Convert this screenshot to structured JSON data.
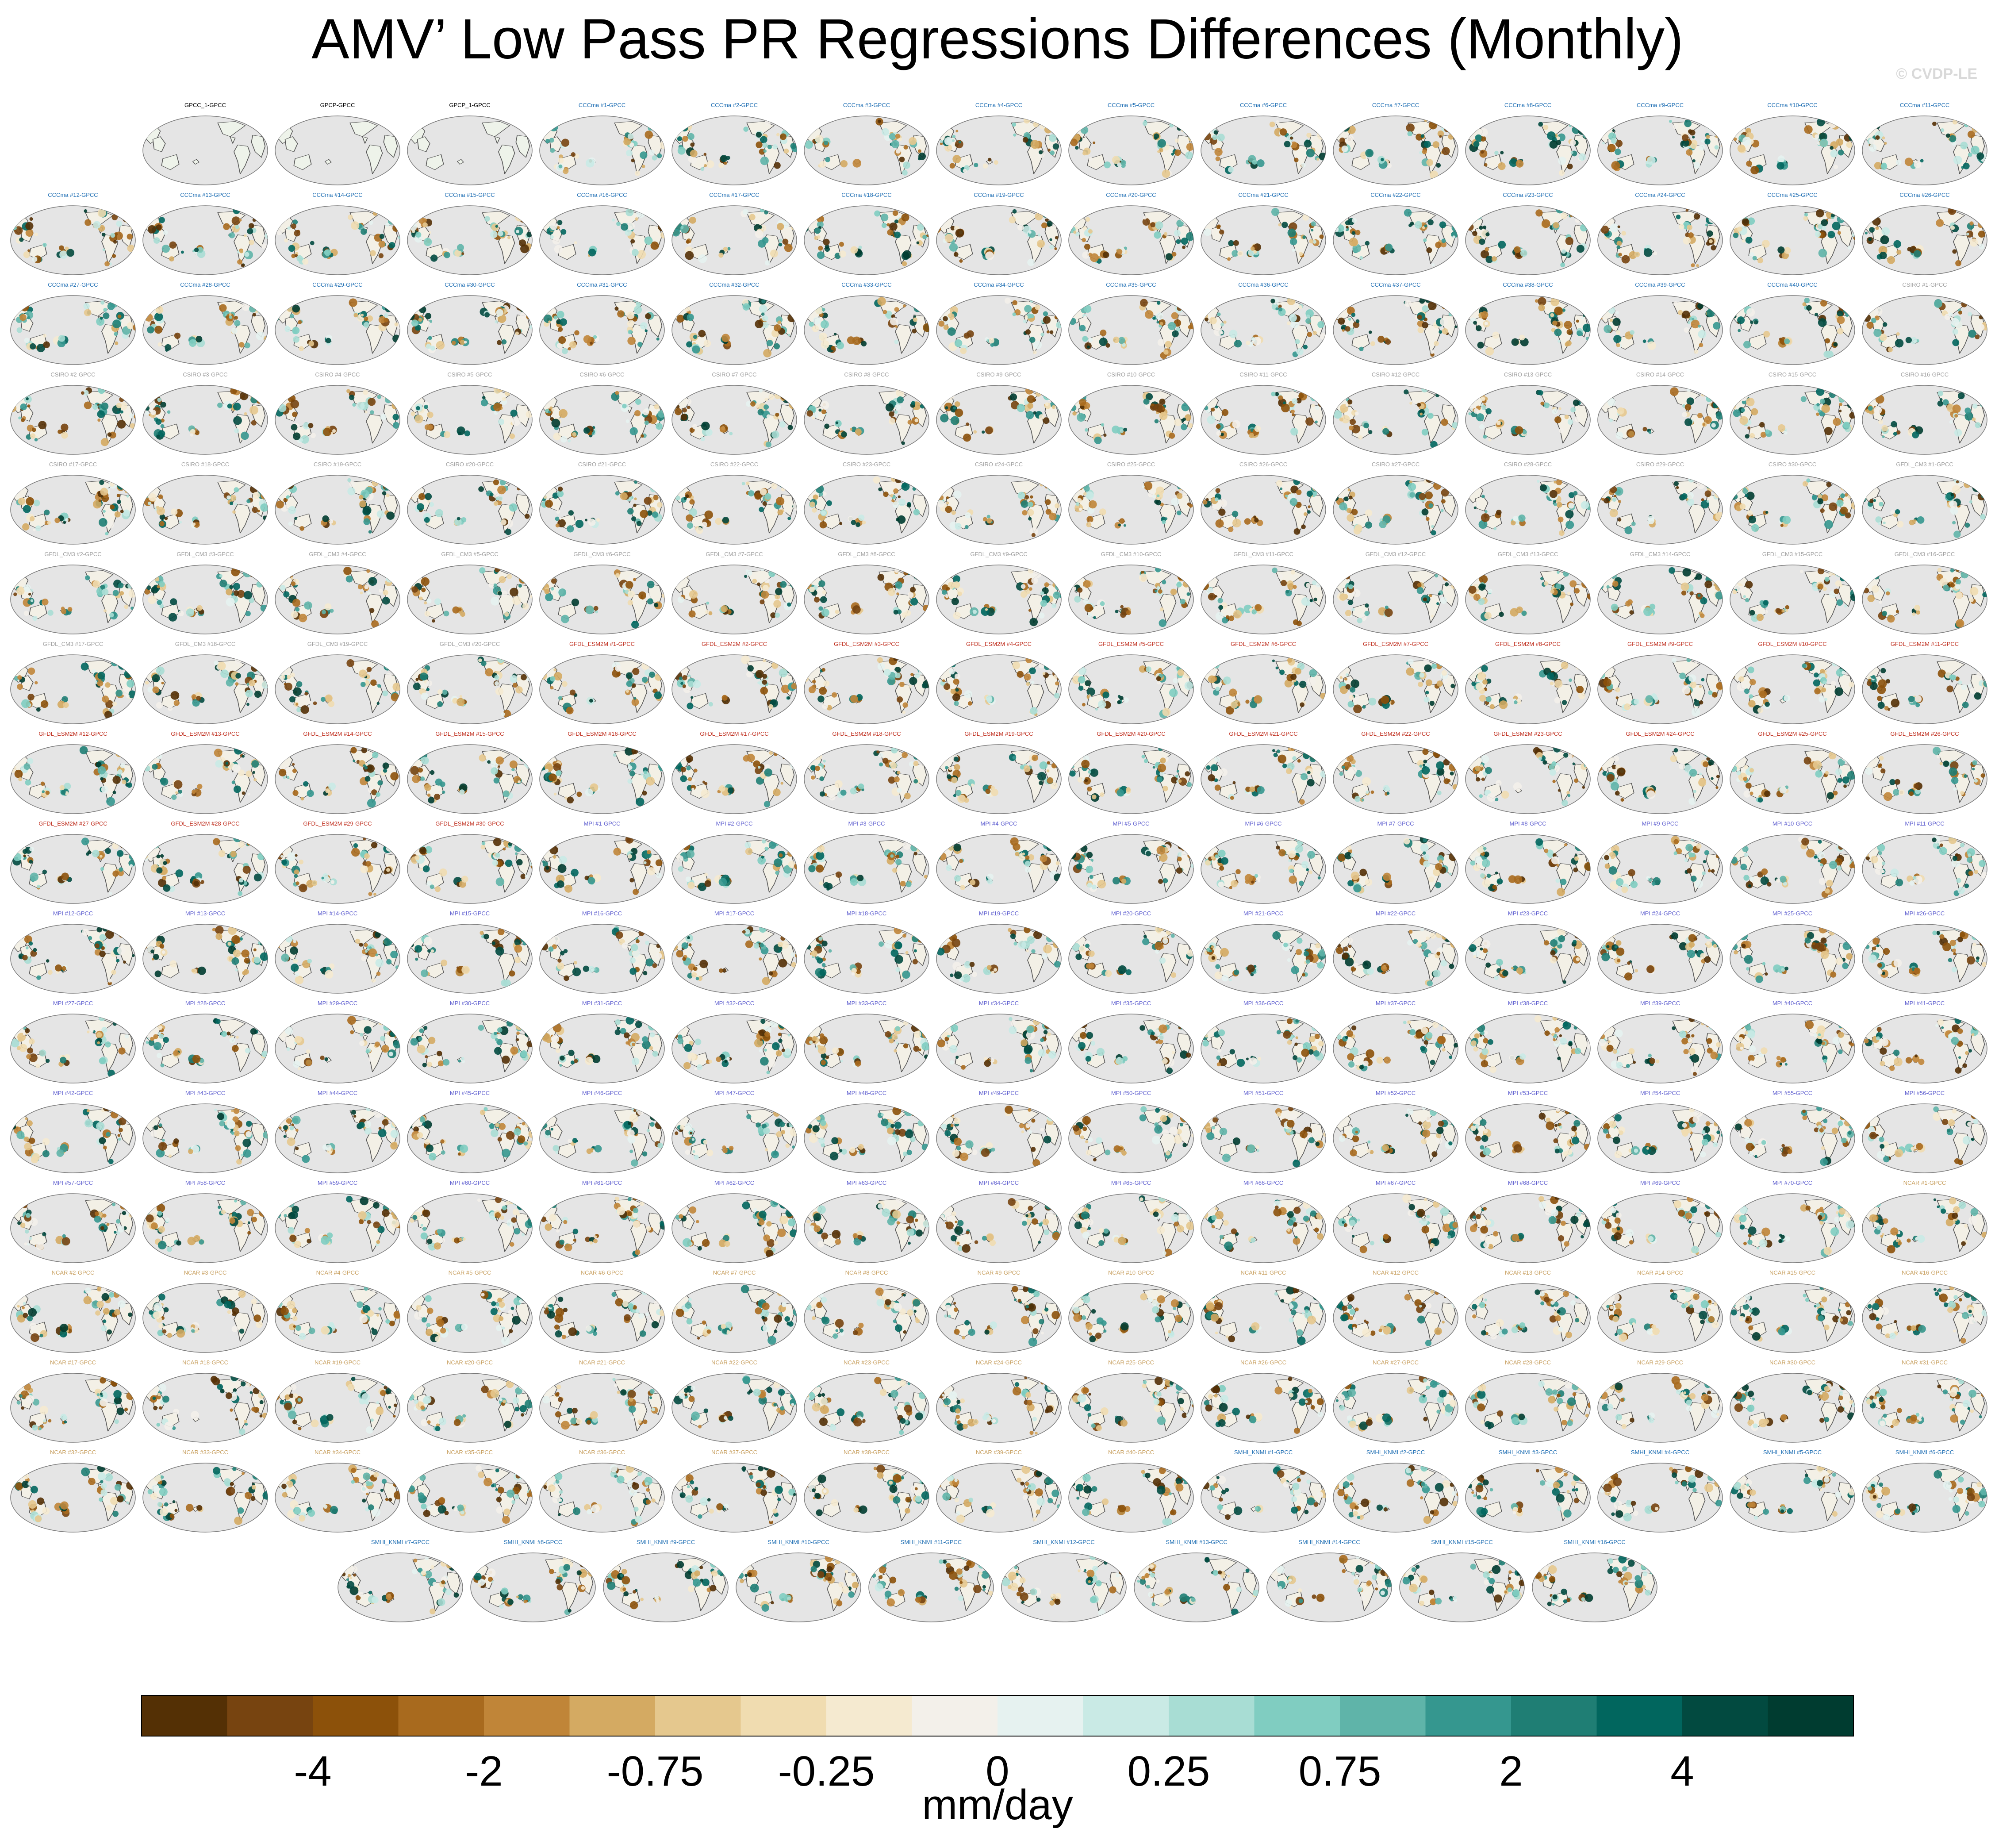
{
  "title": "AMV’ Low Pass PR Regressions Differences (Monthly)",
  "credit": "© CVDP-LE",
  "chart_data": {
    "type": "heatmap",
    "title": "AMV’ Low Pass PR Regressions Differences (Monthly)",
    "projection": "global map, Pacific-centered ellipse",
    "colorbar": {
      "units": "mm/day",
      "tick_labels": [
        "-4",
        "-2",
        "-0.75",
        "-0.25",
        "0",
        "0.25",
        "0.75",
        "2",
        "4"
      ],
      "colors": [
        "#543005",
        "#774410",
        "#8c510a",
        "#a86a1e",
        "#c08538",
        "#d4aa62",
        "#e5c88e",
        "#f0dcb0",
        "#f5ead0",
        "#f3f0ea",
        "#e6f2f0",
        "#c9eae5",
        "#a8ddd4",
        "#80cdc1",
        "#5fb4a9",
        "#35978f",
        "#1f7e74",
        "#01665e",
        "#024a40",
        "#003c30"
      ]
    },
    "panel_colors": {
      "GPCC": "#000000",
      "CCCma": "#1f6fb4",
      "CSIRO": "#a0a0a0",
      "GFDL_CM3": "#a0a0a0",
      "GFDL_ESM2M": "#c03020",
      "MPI": "#6060d0",
      "NCAR": "#c8a060",
      "SMHI_KNMI": "#1f6fb4"
    },
    "panels": [
      {
        "label": "GPCC_1-GPCC",
        "g": "GPCC"
      },
      {
        "label": "GPCP-GPCC",
        "g": "GPCC"
      },
      {
        "label": "GPCP_1-GPCC",
        "g": "GPCC"
      },
      {
        "label": "CCCma #1-GPCC",
        "g": "CCCma"
      },
      {
        "label": "CCCma #2-GPCC",
        "g": "CCCma"
      },
      {
        "label": "CCCma #3-GPCC",
        "g": "CCCma"
      },
      {
        "label": "CCCma #4-GPCC",
        "g": "CCCma"
      },
      {
        "label": "CCCma #5-GPCC",
        "g": "CCCma"
      },
      {
        "label": "CCCma #6-GPCC",
        "g": "CCCma"
      },
      {
        "label": "CCCma #7-GPCC",
        "g": "CCCma"
      },
      {
        "label": "CCCma #8-GPCC",
        "g": "CCCma"
      },
      {
        "label": "CCCma #9-GPCC",
        "g": "CCCma"
      },
      {
        "label": "CCCma #10-GPCC",
        "g": "CCCma"
      },
      {
        "label": "CCCma #11-GPCC",
        "g": "CCCma"
      },
      {
        "label": "CCCma #12-GPCC",
        "g": "CCCma"
      },
      {
        "label": "CCCma #13-GPCC",
        "g": "CCCma"
      },
      {
        "label": "CCCma #14-GPCC",
        "g": "CCCma"
      },
      {
        "label": "CCCma #15-GPCC",
        "g": "CCCma"
      },
      {
        "label": "CCCma #16-GPCC",
        "g": "CCCma"
      },
      {
        "label": "CCCma #17-GPCC",
        "g": "CCCma"
      },
      {
        "label": "CCCma #18-GPCC",
        "g": "CCCma"
      },
      {
        "label": "CCCma #19-GPCC",
        "g": "CCCma"
      },
      {
        "label": "CCCma #20-GPCC",
        "g": "CCCma"
      },
      {
        "label": "CCCma #21-GPCC",
        "g": "CCCma"
      },
      {
        "label": "CCCma #22-GPCC",
        "g": "CCCma"
      },
      {
        "label": "CCCma #23-GPCC",
        "g": "CCCma"
      },
      {
        "label": "CCCma #24-GPCC",
        "g": "CCCma"
      },
      {
        "label": "CCCma #25-GPCC",
        "g": "CCCma"
      },
      {
        "label": "CCCma #26-GPCC",
        "g": "CCCma"
      },
      {
        "label": "CCCma #27-GPCC",
        "g": "CCCma"
      },
      {
        "label": "CCCma #28-GPCC",
        "g": "CCCma"
      },
      {
        "label": "CCCma #29-GPCC",
        "g": "CCCma"
      },
      {
        "label": "CCCma #30-GPCC",
        "g": "CCCma"
      },
      {
        "label": "CCCma #31-GPCC",
        "g": "CCCma"
      },
      {
        "label": "CCCma #32-GPCC",
        "g": "CCCma"
      },
      {
        "label": "CCCma #33-GPCC",
        "g": "CCCma"
      },
      {
        "label": "CCCma #34-GPCC",
        "g": "CCCma"
      },
      {
        "label": "CCCma #35-GPCC",
        "g": "CCCma"
      },
      {
        "label": "CCCma #36-GPCC",
        "g": "CCCma"
      },
      {
        "label": "CCCma #37-GPCC",
        "g": "CCCma"
      },
      {
        "label": "CCCma #38-GPCC",
        "g": "CCCma"
      },
      {
        "label": "CCCma #39-GPCC",
        "g": "CCCma"
      },
      {
        "label": "CCCma #40-GPCC",
        "g": "CCCma"
      },
      {
        "label": "CSIRO #1-GPCC",
        "g": "CSIRO"
      },
      {
        "label": "CSIRO #2-GPCC",
        "g": "CSIRO"
      },
      {
        "label": "CSIRO #3-GPCC",
        "g": "CSIRO"
      },
      {
        "label": "CSIRO #4-GPCC",
        "g": "CSIRO"
      },
      {
        "label": "CSIRO #5-GPCC",
        "g": "CSIRO"
      },
      {
        "label": "CSIRO #6-GPCC",
        "g": "CSIRO"
      },
      {
        "label": "CSIRO #7-GPCC",
        "g": "CSIRO"
      },
      {
        "label": "CSIRO #8-GPCC",
        "g": "CSIRO"
      },
      {
        "label": "CSIRO #9-GPCC",
        "g": "CSIRO"
      },
      {
        "label": "CSIRO #10-GPCC",
        "g": "CSIRO"
      },
      {
        "label": "CSIRO #11-GPCC",
        "g": "CSIRO"
      },
      {
        "label": "CSIRO #12-GPCC",
        "g": "CSIRO"
      },
      {
        "label": "CSIRO #13-GPCC",
        "g": "CSIRO"
      },
      {
        "label": "CSIRO #14-GPCC",
        "g": "CSIRO"
      },
      {
        "label": "CSIRO #15-GPCC",
        "g": "CSIRO"
      },
      {
        "label": "CSIRO #16-GPCC",
        "g": "CSIRO"
      },
      {
        "label": "CSIRO #17-GPCC",
        "g": "CSIRO"
      },
      {
        "label": "CSIRO #18-GPCC",
        "g": "CSIRO"
      },
      {
        "label": "CSIRO #19-GPCC",
        "g": "CSIRO"
      },
      {
        "label": "CSIRO #20-GPCC",
        "g": "CSIRO"
      },
      {
        "label": "CSIRO #21-GPCC",
        "g": "CSIRO"
      },
      {
        "label": "CSIRO #22-GPCC",
        "g": "CSIRO"
      },
      {
        "label": "CSIRO #23-GPCC",
        "g": "CSIRO"
      },
      {
        "label": "CSIRO #24-GPCC",
        "g": "CSIRO"
      },
      {
        "label": "CSIRO #25-GPCC",
        "g": "CSIRO"
      },
      {
        "label": "CSIRO #26-GPCC",
        "g": "CSIRO"
      },
      {
        "label": "CSIRO #27-GPCC",
        "g": "CSIRO"
      },
      {
        "label": "CSIRO #28-GPCC",
        "g": "CSIRO"
      },
      {
        "label": "CSIRO #29-GPCC",
        "g": "CSIRO"
      },
      {
        "label": "CSIRO #30-GPCC",
        "g": "CSIRO"
      },
      {
        "label": "GFDL_CM3 #1-GPCC",
        "g": "GFDL_CM3"
      },
      {
        "label": "GFDL_CM3 #2-GPCC",
        "g": "GFDL_CM3"
      },
      {
        "label": "GFDL_CM3 #3-GPCC",
        "g": "GFDL_CM3"
      },
      {
        "label": "GFDL_CM3 #4-GPCC",
        "g": "GFDL_CM3"
      },
      {
        "label": "GFDL_CM3 #5-GPCC",
        "g": "GFDL_CM3"
      },
      {
        "label": "GFDL_CM3 #6-GPCC",
        "g": "GFDL_CM3"
      },
      {
        "label": "GFDL_CM3 #7-GPCC",
        "g": "GFDL_CM3"
      },
      {
        "label": "GFDL_CM3 #8-GPCC",
        "g": "GFDL_CM3"
      },
      {
        "label": "GFDL_CM3 #9-GPCC",
        "g": "GFDL_CM3"
      },
      {
        "label": "GFDL_CM3 #10-GPCC",
        "g": "GFDL_CM3"
      },
      {
        "label": "GFDL_CM3 #11-GPCC",
        "g": "GFDL_CM3"
      },
      {
        "label": "GFDL_CM3 #12-GPCC",
        "g": "GFDL_CM3"
      },
      {
        "label": "GFDL_CM3 #13-GPCC",
        "g": "GFDL_CM3"
      },
      {
        "label": "GFDL_CM3 #14-GPCC",
        "g": "GFDL_CM3"
      },
      {
        "label": "GFDL_CM3 #15-GPCC",
        "g": "GFDL_CM3"
      },
      {
        "label": "GFDL_CM3 #16-GPCC",
        "g": "GFDL_CM3"
      },
      {
        "label": "GFDL_CM3 #17-GPCC",
        "g": "GFDL_CM3"
      },
      {
        "label": "GFDL_CM3 #18-GPCC",
        "g": "GFDL_CM3"
      },
      {
        "label": "GFDL_CM3 #19-GPCC",
        "g": "GFDL_CM3"
      },
      {
        "label": "GFDL_CM3 #20-GPCC",
        "g": "GFDL_CM3"
      },
      {
        "label": "GFDL_ESM2M #1-GPCC",
        "g": "GFDL_ESM2M"
      },
      {
        "label": "GFDL_ESM2M #2-GPCC",
        "g": "GFDL_ESM2M"
      },
      {
        "label": "GFDL_ESM2M #3-GPCC",
        "g": "GFDL_ESM2M"
      },
      {
        "label": "GFDL_ESM2M #4-GPCC",
        "g": "GFDL_ESM2M"
      },
      {
        "label": "GFDL_ESM2M #5-GPCC",
        "g": "GFDL_ESM2M"
      },
      {
        "label": "GFDL_ESM2M #6-GPCC",
        "g": "GFDL_ESM2M"
      },
      {
        "label": "GFDL_ESM2M #7-GPCC",
        "g": "GFDL_ESM2M"
      },
      {
        "label": "GFDL_ESM2M #8-GPCC",
        "g": "GFDL_ESM2M"
      },
      {
        "label": "GFDL_ESM2M #9-GPCC",
        "g": "GFDL_ESM2M"
      },
      {
        "label": "GFDL_ESM2M #10-GPCC",
        "g": "GFDL_ESM2M"
      },
      {
        "label": "GFDL_ESM2M #11-GPCC",
        "g": "GFDL_ESM2M"
      },
      {
        "label": "GFDL_ESM2M #12-GPCC",
        "g": "GFDL_ESM2M"
      },
      {
        "label": "GFDL_ESM2M #13-GPCC",
        "g": "GFDL_ESM2M"
      },
      {
        "label": "GFDL_ESM2M #14-GPCC",
        "g": "GFDL_ESM2M"
      },
      {
        "label": "GFDL_ESM2M #15-GPCC",
        "g": "GFDL_ESM2M"
      },
      {
        "label": "GFDL_ESM2M #16-GPCC",
        "g": "GFDL_ESM2M"
      },
      {
        "label": "GFDL_ESM2M #17-GPCC",
        "g": "GFDL_ESM2M"
      },
      {
        "label": "GFDL_ESM2M #18-GPCC",
        "g": "GFDL_ESM2M"
      },
      {
        "label": "GFDL_ESM2M #19-GPCC",
        "g": "GFDL_ESM2M"
      },
      {
        "label": "GFDL_ESM2M #20-GPCC",
        "g": "GFDL_ESM2M"
      },
      {
        "label": "GFDL_ESM2M #21-GPCC",
        "g": "GFDL_ESM2M"
      },
      {
        "label": "GFDL_ESM2M #22-GPCC",
        "g": "GFDL_ESM2M"
      },
      {
        "label": "GFDL_ESM2M #23-GPCC",
        "g": "GFDL_ESM2M"
      },
      {
        "label": "GFDL_ESM2M #24-GPCC",
        "g": "GFDL_ESM2M"
      },
      {
        "label": "GFDL_ESM2M #25-GPCC",
        "g": "GFDL_ESM2M"
      },
      {
        "label": "GFDL_ESM2M #26-GPCC",
        "g": "GFDL_ESM2M"
      },
      {
        "label": "GFDL_ESM2M #27-GPCC",
        "g": "GFDL_ESM2M"
      },
      {
        "label": "GFDL_ESM2M #28-GPCC",
        "g": "GFDL_ESM2M"
      },
      {
        "label": "GFDL_ESM2M #29-GPCC",
        "g": "GFDL_ESM2M"
      },
      {
        "label": "GFDL_ESM2M #30-GPCC",
        "g": "GFDL_ESM2M"
      },
      {
        "label": "MPI #1-GPCC",
        "g": "MPI"
      },
      {
        "label": "MPI #2-GPCC",
        "g": "MPI"
      },
      {
        "label": "MPI #3-GPCC",
        "g": "MPI"
      },
      {
        "label": "MPI #4-GPCC",
        "g": "MPI"
      },
      {
        "label": "MPI #5-GPCC",
        "g": "MPI"
      },
      {
        "label": "MPI #6-GPCC",
        "g": "MPI"
      },
      {
        "label": "MPI #7-GPCC",
        "g": "MPI"
      },
      {
        "label": "MPI #8-GPCC",
        "g": "MPI"
      },
      {
        "label": "MPI #9-GPCC",
        "g": "MPI"
      },
      {
        "label": "MPI #10-GPCC",
        "g": "MPI"
      },
      {
        "label": "MPI #11-GPCC",
        "g": "MPI"
      },
      {
        "label": "MPI #12-GPCC",
        "g": "MPI"
      },
      {
        "label": "MPI #13-GPCC",
        "g": "MPI"
      },
      {
        "label": "MPI #14-GPCC",
        "g": "MPI"
      },
      {
        "label": "MPI #15-GPCC",
        "g": "MPI"
      },
      {
        "label": "MPI #16-GPCC",
        "g": "MPI"
      },
      {
        "label": "MPI #17-GPCC",
        "g": "MPI"
      },
      {
        "label": "MPI #18-GPCC",
        "g": "MPI"
      },
      {
        "label": "MPI #19-GPCC",
        "g": "MPI"
      },
      {
        "label": "MPI #20-GPCC",
        "g": "MPI"
      },
      {
        "label": "MPI #21-GPCC",
        "g": "MPI"
      },
      {
        "label": "MPI #22-GPCC",
        "g": "MPI"
      },
      {
        "label": "MPI #23-GPCC",
        "g": "MPI"
      },
      {
        "label": "MPI #24-GPCC",
        "g": "MPI"
      },
      {
        "label": "MPI #25-GPCC",
        "g": "MPI"
      },
      {
        "label": "MPI #26-GPCC",
        "g": "MPI"
      },
      {
        "label": "MPI #27-GPCC",
        "g": "MPI"
      },
      {
        "label": "MPI #28-GPCC",
        "g": "MPI"
      },
      {
        "label": "MPI #29-GPCC",
        "g": "MPI"
      },
      {
        "label": "MPI #30-GPCC",
        "g": "MPI"
      },
      {
        "label": "MPI #31-GPCC",
        "g": "MPI"
      },
      {
        "label": "MPI #32-GPCC",
        "g": "MPI"
      },
      {
        "label": "MPI #33-GPCC",
        "g": "MPI"
      },
      {
        "label": "MPI #34-GPCC",
        "g": "MPI"
      },
      {
        "label": "MPI #35-GPCC",
        "g": "MPI"
      },
      {
        "label": "MPI #36-GPCC",
        "g": "MPI"
      },
      {
        "label": "MPI #37-GPCC",
        "g": "MPI"
      },
      {
        "label": "MPI #38-GPCC",
        "g": "MPI"
      },
      {
        "label": "MPI #39-GPCC",
        "g": "MPI"
      },
      {
        "label": "MPI #40-GPCC",
        "g": "MPI"
      },
      {
        "label": "MPI #41-GPCC",
        "g": "MPI"
      },
      {
        "label": "MPI #42-GPCC",
        "g": "MPI"
      },
      {
        "label": "MPI #43-GPCC",
        "g": "MPI"
      },
      {
        "label": "MPI #44-GPCC",
        "g": "MPI"
      },
      {
        "label": "MPI #45-GPCC",
        "g": "MPI"
      },
      {
        "label": "MPI #46-GPCC",
        "g": "MPI"
      },
      {
        "label": "MPI #47-GPCC",
        "g": "MPI"
      },
      {
        "label": "MPI #48-GPCC",
        "g": "MPI"
      },
      {
        "label": "MPI #49-GPCC",
        "g": "MPI"
      },
      {
        "label": "MPI #50-GPCC",
        "g": "MPI"
      },
      {
        "label": "MPI #51-GPCC",
        "g": "MPI"
      },
      {
        "label": "MPI #52-GPCC",
        "g": "MPI"
      },
      {
        "label": "MPI #53-GPCC",
        "g": "MPI"
      },
      {
        "label": "MPI #54-GPCC",
        "g": "MPI"
      },
      {
        "label": "MPI #55-GPCC",
        "g": "MPI"
      },
      {
        "label": "MPI #56-GPCC",
        "g": "MPI"
      },
      {
        "label": "MPI #57-GPCC",
        "g": "MPI"
      },
      {
        "label": "MPI #58-GPCC",
        "g": "MPI"
      },
      {
        "label": "MPI #59-GPCC",
        "g": "MPI"
      },
      {
        "label": "MPI #60-GPCC",
        "g": "MPI"
      },
      {
        "label": "MPI #61-GPCC",
        "g": "MPI"
      },
      {
        "label": "MPI #62-GPCC",
        "g": "MPI"
      },
      {
        "label": "MPI #63-GPCC",
        "g": "MPI"
      },
      {
        "label": "MPI #64-GPCC",
        "g": "MPI"
      },
      {
        "label": "MPI #65-GPCC",
        "g": "MPI"
      },
      {
        "label": "MPI #66-GPCC",
        "g": "MPI"
      },
      {
        "label": "MPI #67-GPCC",
        "g": "MPI"
      },
      {
        "label": "MPI #68-GPCC",
        "g": "MPI"
      },
      {
        "label": "MPI #69-GPCC",
        "g": "MPI"
      },
      {
        "label": "MPI #70-GPCC",
        "g": "MPI"
      },
      {
        "label": "NCAR #1-GPCC",
        "g": "NCAR"
      },
      {
        "label": "NCAR #2-GPCC",
        "g": "NCAR"
      },
      {
        "label": "NCAR #3-GPCC",
        "g": "NCAR"
      },
      {
        "label": "NCAR #4-GPCC",
        "g": "NCAR"
      },
      {
        "label": "NCAR #5-GPCC",
        "g": "NCAR"
      },
      {
        "label": "NCAR #6-GPCC",
        "g": "NCAR"
      },
      {
        "label": "NCAR #7-GPCC",
        "g": "NCAR"
      },
      {
        "label": "NCAR #8-GPCC",
        "g": "NCAR"
      },
      {
        "label": "NCAR #9-GPCC",
        "g": "NCAR"
      },
      {
        "label": "NCAR #10-GPCC",
        "g": "NCAR"
      },
      {
        "label": "NCAR #11-GPCC",
        "g": "NCAR"
      },
      {
        "label": "NCAR #12-GPCC",
        "g": "NCAR"
      },
      {
        "label": "NCAR #13-GPCC",
        "g": "NCAR"
      },
      {
        "label": "NCAR #14-GPCC",
        "g": "NCAR"
      },
      {
        "label": "NCAR #15-GPCC",
        "g": "NCAR"
      },
      {
        "label": "NCAR #16-GPCC",
        "g": "NCAR"
      },
      {
        "label": "NCAR #17-GPCC",
        "g": "NCAR"
      },
      {
        "label": "NCAR #18-GPCC",
        "g": "NCAR"
      },
      {
        "label": "NCAR #19-GPCC",
        "g": "NCAR"
      },
      {
        "label": "NCAR #20-GPCC",
        "g": "NCAR"
      },
      {
        "label": "NCAR #21-GPCC",
        "g": "NCAR"
      },
      {
        "label": "NCAR #22-GPCC",
        "g": "NCAR"
      },
      {
        "label": "NCAR #23-GPCC",
        "g": "NCAR"
      },
      {
        "label": "NCAR #24-GPCC",
        "g": "NCAR"
      },
      {
        "label": "NCAR #25-GPCC",
        "g": "NCAR"
      },
      {
        "label": "NCAR #26-GPCC",
        "g": "NCAR"
      },
      {
        "label": "NCAR #27-GPCC",
        "g": "NCAR"
      },
      {
        "label": "NCAR #28-GPCC",
        "g": "NCAR"
      },
      {
        "label": "NCAR #29-GPCC",
        "g": "NCAR"
      },
      {
        "label": "NCAR #30-GPCC",
        "g": "NCAR"
      },
      {
        "label": "NCAR #31-GPCC",
        "g": "NCAR"
      },
      {
        "label": "NCAR #32-GPCC",
        "g": "NCAR"
      },
      {
        "label": "NCAR #33-GPCC",
        "g": "NCAR"
      },
      {
        "label": "NCAR #34-GPCC",
        "g": "NCAR"
      },
      {
        "label": "NCAR #35-GPCC",
        "g": "NCAR"
      },
      {
        "label": "NCAR #36-GPCC",
        "g": "NCAR"
      },
      {
        "label": "NCAR #37-GPCC",
        "g": "NCAR"
      },
      {
        "label": "NCAR #38-GPCC",
        "g": "NCAR"
      },
      {
        "label": "NCAR #39-GPCC",
        "g": "NCAR"
      },
      {
        "label": "NCAR #40-GPCC",
        "g": "NCAR"
      },
      {
        "label": "SMHI_KNMI #1-GPCC",
        "g": "SMHI_KNMI"
      },
      {
        "label": "SMHI_KNMI #2-GPCC",
        "g": "SMHI_KNMI"
      },
      {
        "label": "SMHI_KNMI #3-GPCC",
        "g": "SMHI_KNMI"
      },
      {
        "label": "SMHI_KNMI #4-GPCC",
        "g": "SMHI_KNMI"
      },
      {
        "label": "SMHI_KNMI #5-GPCC",
        "g": "SMHI_KNMI"
      },
      {
        "label": "SMHI_KNMI #6-GPCC",
        "g": "SMHI_KNMI"
      },
      {
        "label": "SMHI_KNMI #7-GPCC",
        "g": "SMHI_KNMI"
      },
      {
        "label": "SMHI_KNMI #8-GPCC",
        "g": "SMHI_KNMI"
      },
      {
        "label": "SMHI_KNMI #9-GPCC",
        "g": "SMHI_KNMI"
      },
      {
        "label": "SMHI_KNMI #10-GPCC",
        "g": "SMHI_KNMI"
      },
      {
        "label": "SMHI_KNMI #11-GPCC",
        "g": "SMHI_KNMI"
      },
      {
        "label": "SMHI_KNMI #12-GPCC",
        "g": "SMHI_KNMI"
      },
      {
        "label": "SMHI_KNMI #13-GPCC",
        "g": "SMHI_KNMI"
      },
      {
        "label": "SMHI_KNMI #14-GPCC",
        "g": "SMHI_KNMI"
      },
      {
        "label": "SMHI_KNMI #15-GPCC",
        "g": "SMHI_KNMI"
      },
      {
        "label": "SMHI_KNMI #16-GPCC",
        "g": "SMHI_KNMI"
      }
    ]
  }
}
